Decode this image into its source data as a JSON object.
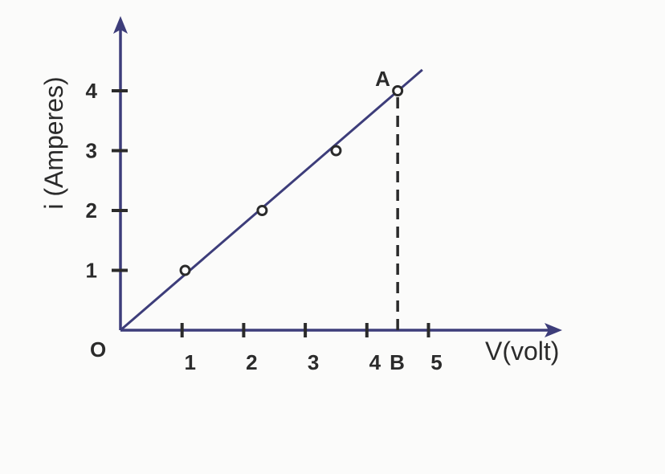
{
  "chart_data": {
    "type": "line",
    "title": "",
    "xlabel": "V(volt)",
    "ylabel": "i (Amperes)",
    "xlim": [
      0,
      5.0
    ],
    "ylim": [
      0,
      4.0
    ],
    "x_tick_labels": [
      "1",
      "2",
      "3",
      "4",
      "5"
    ],
    "x_tick_values": [
      1,
      2,
      3,
      4,
      5
    ],
    "y_tick_labels": [
      "1",
      "2",
      "3",
      "4"
    ],
    "y_tick_values": [
      1,
      2,
      3,
      4
    ],
    "origin_label": "O",
    "series": [
      {
        "x": [
          1.05,
          2.3,
          3.5,
          4.5
        ],
        "y": [
          1.0,
          2.0,
          3.0,
          4.0
        ]
      }
    ],
    "line": {
      "x": [
        0,
        4.9
      ],
      "y": [
        0,
        4.35
      ]
    },
    "annotations": [
      {
        "label": "A",
        "x": 4.5,
        "y": 4.0
      },
      {
        "label": "B",
        "x": 4.5,
        "y": 0
      }
    ],
    "colors": {
      "line": "#3d3d7a",
      "axis": "#3d3d7a",
      "text": "#2b2b2b",
      "marker": "#2b2b2b",
      "dash": "#2b2b2b"
    },
    "grid": false,
    "legend": "none"
  }
}
